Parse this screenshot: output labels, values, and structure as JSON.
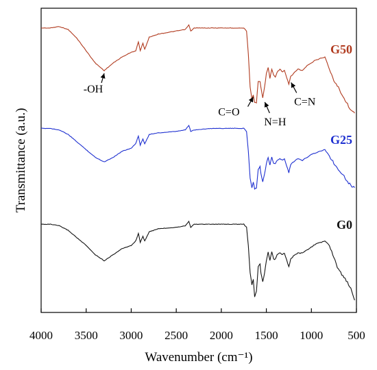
{
  "chart_data": {
    "type": "line",
    "xlabel": "Wavenumber (cm⁻¹)",
    "ylabel": "Transmittance (a.u.)",
    "xlim": [
      4000,
      500
    ],
    "x_reversed": true,
    "xticks": [
      4000,
      3500,
      3000,
      2500,
      2000,
      1500,
      1000,
      500
    ],
    "yticks_shown": false,
    "grid": false,
    "series": [
      {
        "name": "G50",
        "color": "#b03a1e",
        "points": [
          [
            4000,
            0.935
          ],
          [
            3900,
            0.935
          ],
          [
            3800,
            0.94
          ],
          [
            3700,
            0.93
          ],
          [
            3600,
            0.9
          ],
          [
            3500,
            0.86
          ],
          [
            3400,
            0.82
          ],
          [
            3300,
            0.795
          ],
          [
            3200,
            0.82
          ],
          [
            3100,
            0.84
          ],
          [
            3000,
            0.855
          ],
          [
            2950,
            0.86
          ],
          [
            2920,
            0.89
          ],
          [
            2900,
            0.86
          ],
          [
            2870,
            0.885
          ],
          [
            2850,
            0.865
          ],
          [
            2800,
            0.905
          ],
          [
            2700,
            0.915
          ],
          [
            2500,
            0.925
          ],
          [
            2400,
            0.93
          ],
          [
            2360,
            0.945
          ],
          [
            2340,
            0.925
          ],
          [
            2300,
            0.935
          ],
          [
            2100,
            0.935
          ],
          [
            1900,
            0.935
          ],
          [
            1750,
            0.935
          ],
          [
            1720,
            0.925
          ],
          [
            1700,
            0.85
          ],
          [
            1680,
            0.74
          ],
          [
            1660,
            0.7
          ],
          [
            1645,
            0.715
          ],
          [
            1630,
            0.69
          ],
          [
            1610,
            0.69
          ],
          [
            1590,
            0.76
          ],
          [
            1570,
            0.76
          ],
          [
            1560,
            0.74
          ],
          [
            1540,
            0.705
          ],
          [
            1520,
            0.74
          ],
          [
            1500,
            0.785
          ],
          [
            1480,
            0.805
          ],
          [
            1460,
            0.77
          ],
          [
            1440,
            0.8
          ],
          [
            1420,
            0.78
          ],
          [
            1400,
            0.775
          ],
          [
            1380,
            0.79
          ],
          [
            1350,
            0.8
          ],
          [
            1320,
            0.79
          ],
          [
            1300,
            0.795
          ],
          [
            1250,
            0.75
          ],
          [
            1230,
            0.775
          ],
          [
            1200,
            0.785
          ],
          [
            1150,
            0.8
          ],
          [
            1100,
            0.795
          ],
          [
            1050,
            0.81
          ],
          [
            1000,
            0.82
          ],
          [
            950,
            0.83
          ],
          [
            900,
            0.835
          ],
          [
            850,
            0.84
          ],
          [
            800,
            0.8
          ],
          [
            750,
            0.76
          ],
          [
            700,
            0.74
          ],
          [
            650,
            0.71
          ],
          [
            600,
            0.685
          ],
          [
            550,
            0.66
          ],
          [
            520,
            0.655
          ]
        ]
      },
      {
        "name": "G25",
        "color": "#1d2fd0",
        "points": [
          [
            4000,
            0.605
          ],
          [
            3900,
            0.605
          ],
          [
            3800,
            0.6
          ],
          [
            3700,
            0.585
          ],
          [
            3600,
            0.56
          ],
          [
            3500,
            0.535
          ],
          [
            3400,
            0.51
          ],
          [
            3300,
            0.495
          ],
          [
            3200,
            0.51
          ],
          [
            3100,
            0.53
          ],
          [
            3000,
            0.54
          ],
          [
            2950,
            0.555
          ],
          [
            2920,
            0.58
          ],
          [
            2900,
            0.55
          ],
          [
            2870,
            0.57
          ],
          [
            2850,
            0.555
          ],
          [
            2800,
            0.585
          ],
          [
            2700,
            0.59
          ],
          [
            2500,
            0.595
          ],
          [
            2400,
            0.6
          ],
          [
            2360,
            0.615
          ],
          [
            2340,
            0.595
          ],
          [
            2300,
            0.6
          ],
          [
            2100,
            0.605
          ],
          [
            1900,
            0.605
          ],
          [
            1750,
            0.605
          ],
          [
            1720,
            0.595
          ],
          [
            1700,
            0.53
          ],
          [
            1680,
            0.44
          ],
          [
            1660,
            0.41
          ],
          [
            1645,
            0.43
          ],
          [
            1630,
            0.405
          ],
          [
            1610,
            0.41
          ],
          [
            1590,
            0.47
          ],
          [
            1570,
            0.48
          ],
          [
            1560,
            0.455
          ],
          [
            1540,
            0.43
          ],
          [
            1520,
            0.455
          ],
          [
            1500,
            0.49
          ],
          [
            1480,
            0.51
          ],
          [
            1460,
            0.485
          ],
          [
            1440,
            0.51
          ],
          [
            1420,
            0.49
          ],
          [
            1400,
            0.49
          ],
          [
            1380,
            0.5
          ],
          [
            1350,
            0.505
          ],
          [
            1320,
            0.5
          ],
          [
            1300,
            0.505
          ],
          [
            1250,
            0.46
          ],
          [
            1230,
            0.485
          ],
          [
            1200,
            0.495
          ],
          [
            1150,
            0.505
          ],
          [
            1100,
            0.5
          ],
          [
            1050,
            0.51
          ],
          [
            1000,
            0.52
          ],
          [
            950,
            0.525
          ],
          [
            900,
            0.53
          ],
          [
            850,
            0.535
          ],
          [
            800,
            0.515
          ],
          [
            750,
            0.49
          ],
          [
            700,
            0.47
          ],
          [
            650,
            0.455
          ],
          [
            600,
            0.43
          ],
          [
            550,
            0.415
          ],
          [
            520,
            0.41
          ]
        ]
      },
      {
        "name": "G0",
        "color": "#111111",
        "points": [
          [
            4000,
            0.29
          ],
          [
            3900,
            0.29
          ],
          [
            3800,
            0.285
          ],
          [
            3700,
            0.27
          ],
          [
            3600,
            0.245
          ],
          [
            3500,
            0.22
          ],
          [
            3400,
            0.19
          ],
          [
            3300,
            0.17
          ],
          [
            3200,
            0.19
          ],
          [
            3100,
            0.21
          ],
          [
            3000,
            0.22
          ],
          [
            2950,
            0.235
          ],
          [
            2920,
            0.26
          ],
          [
            2900,
            0.23
          ],
          [
            2870,
            0.25
          ],
          [
            2850,
            0.235
          ],
          [
            2800,
            0.265
          ],
          [
            2700,
            0.275
          ],
          [
            2500,
            0.28
          ],
          [
            2400,
            0.285
          ],
          [
            2360,
            0.3
          ],
          [
            2340,
            0.28
          ],
          [
            2300,
            0.29
          ],
          [
            2100,
            0.29
          ],
          [
            1900,
            0.29
          ],
          [
            1750,
            0.29
          ],
          [
            1720,
            0.28
          ],
          [
            1700,
            0.22
          ],
          [
            1680,
            0.13
          ],
          [
            1660,
            0.09
          ],
          [
            1645,
            0.11
          ],
          [
            1630,
            0.05
          ],
          [
            1610,
            0.07
          ],
          [
            1590,
            0.15
          ],
          [
            1570,
            0.16
          ],
          [
            1560,
            0.13
          ],
          [
            1540,
            0.1
          ],
          [
            1520,
            0.13
          ],
          [
            1500,
            0.17
          ],
          [
            1480,
            0.2
          ],
          [
            1460,
            0.17
          ],
          [
            1440,
            0.2
          ],
          [
            1420,
            0.175
          ],
          [
            1400,
            0.175
          ],
          [
            1380,
            0.19
          ],
          [
            1350,
            0.195
          ],
          [
            1320,
            0.19
          ],
          [
            1300,
            0.195
          ],
          [
            1250,
            0.15
          ],
          [
            1230,
            0.175
          ],
          [
            1200,
            0.185
          ],
          [
            1150,
            0.195
          ],
          [
            1100,
            0.195
          ],
          [
            1050,
            0.205
          ],
          [
            1000,
            0.215
          ],
          [
            950,
            0.225
          ],
          [
            900,
            0.23
          ],
          [
            850,
            0.235
          ],
          [
            800,
            0.22
          ],
          [
            750,
            0.18
          ],
          [
            700,
            0.14
          ],
          [
            650,
            0.12
          ],
          [
            600,
            0.1
          ],
          [
            550,
            0.07
          ],
          [
            520,
            0.04
          ]
        ]
      }
    ],
    "annotations": [
      {
        "text": "-OH",
        "x": 3300
      },
      {
        "text": "C=O",
        "x": 1645
      },
      {
        "text": "N=H",
        "x": 1540
      },
      {
        "text": "C=N",
        "x": 1240
      }
    ]
  }
}
